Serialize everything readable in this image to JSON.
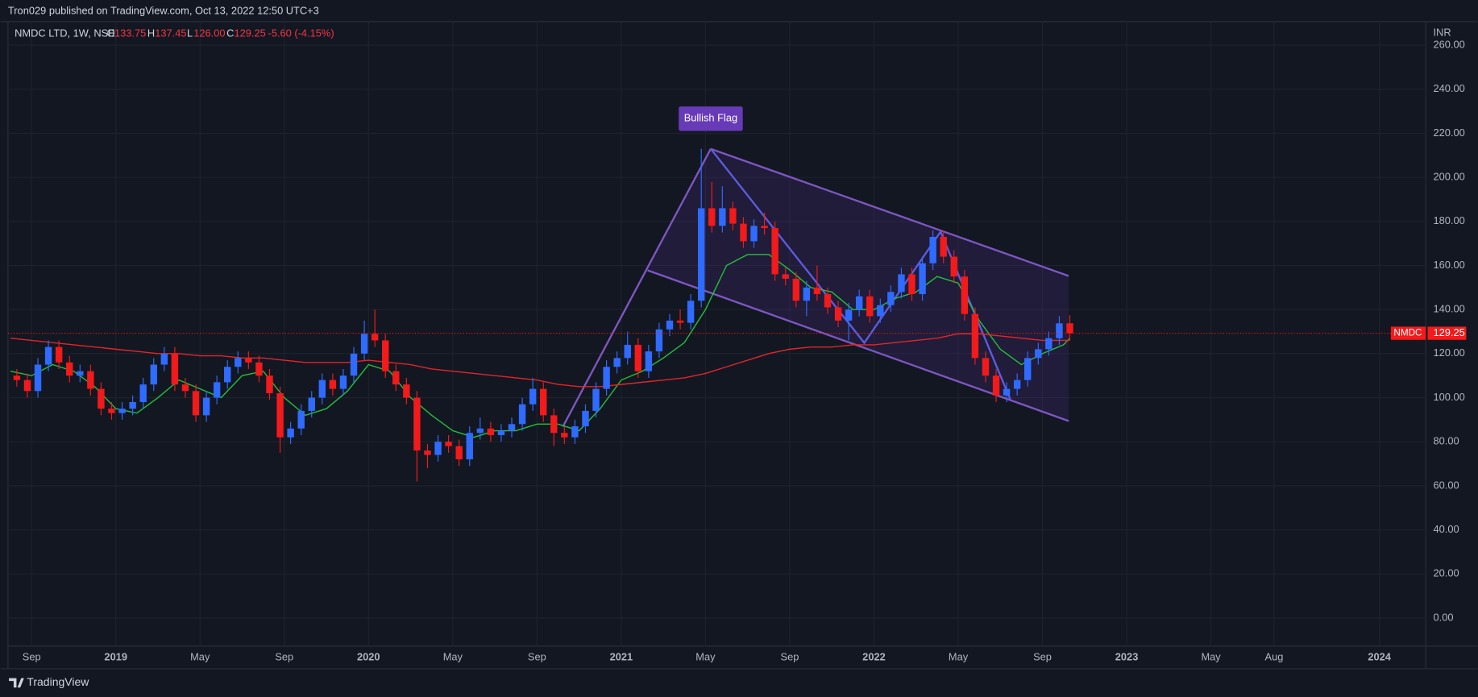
{
  "header": {
    "text": "Tron029 published on TradingView.com, Oct 13, 2022 12:50 UTC+3"
  },
  "footer": {
    "brand": "TradingView"
  },
  "chart_data": {
    "type": "candlestick",
    "legend": {
      "symbol": "NMDC LTD, 1W, NSE",
      "open_label": "O",
      "open": "133.75",
      "high_label": "H",
      "high": "137.45",
      "low_label": "L",
      "low": "126.00",
      "close_label": "C",
      "close": "129.25",
      "change": "-5.60 (-4.15%)"
    },
    "y_unit": "INR",
    "price_label": {
      "symbol": "NMDC",
      "value": "129.25"
    },
    "annotation": "Bullish Flag",
    "xlim": [
      -1.12,
      66.2
    ],
    "xticks": [
      {
        "value": 0,
        "label": "Sep"
      },
      {
        "value": 4,
        "label": "2019"
      },
      {
        "value": 8,
        "label": "May"
      },
      {
        "value": 12,
        "label": "Sep"
      },
      {
        "value": 16,
        "label": "2020"
      },
      {
        "value": 20,
        "label": "May"
      },
      {
        "value": 24,
        "label": "Sep"
      },
      {
        "value": 28,
        "label": "2021"
      },
      {
        "value": 32,
        "label": "May"
      },
      {
        "value": 36,
        "label": "Sep"
      },
      {
        "value": 40,
        "label": "2022"
      },
      {
        "value": 44,
        "label": "May"
      },
      {
        "value": 48,
        "label": "Sep"
      },
      {
        "value": 52,
        "label": "2023"
      },
      {
        "value": 56,
        "label": "May"
      },
      {
        "value": 59,
        "label": "Aug"
      },
      {
        "value": 64,
        "label": "2024"
      }
    ],
    "ylim": [
      -12.8,
      270.7
    ],
    "yticks": [
      {
        "value": 0,
        "label": "0.00"
      },
      {
        "value": 20,
        "label": "20.00"
      },
      {
        "value": 40,
        "label": "40.00"
      },
      {
        "value": 60,
        "label": "60.00"
      },
      {
        "value": 80,
        "label": "80.00"
      },
      {
        "value": 100,
        "label": "100.00"
      },
      {
        "value": 120,
        "label": "120.00"
      },
      {
        "value": 140,
        "label": "140.00"
      },
      {
        "value": 160,
        "label": "160.00"
      },
      {
        "value": 180,
        "label": "180.00"
      },
      {
        "value": 200,
        "label": "200.00"
      },
      {
        "value": 220,
        "label": "220.00"
      },
      {
        "value": 240,
        "label": "240.00"
      },
      {
        "value": 260,
        "label": "260.00"
      }
    ],
    "grid": true,
    "candles": {
      "up_color": "#2f6bff",
      "down_color": "#f21a1a",
      "x": [
        -0.7,
        -0.2,
        0.3,
        0.8,
        1.3,
        1.8,
        2.3,
        2.8,
        3.3,
        3.8,
        4.3,
        4.8,
        5.3,
        5.8,
        6.3,
        6.8,
        7.3,
        7.8,
        8.3,
        8.8,
        9.3,
        9.8,
        10.3,
        10.8,
        11.3,
        11.8,
        12.3,
        12.8,
        13.3,
        13.8,
        14.3,
        14.8,
        15.3,
        15.8,
        16.3,
        16.8,
        17.3,
        17.8,
        18.3,
        18.8,
        19.3,
        19.8,
        20.3,
        20.8,
        21.3,
        21.8,
        22.3,
        22.8,
        23.3,
        23.8,
        24.3,
        24.8,
        25.3,
        25.8,
        26.3,
        26.8,
        27.3,
        27.8,
        28.3,
        28.8,
        29.3,
        29.8,
        30.3,
        30.8,
        31.3,
        31.8,
        32.3,
        32.8,
        33.3,
        33.8,
        34.3,
        34.8,
        35.3,
        35.8,
        36.3,
        36.8,
        37.3,
        37.8,
        38.3,
        38.8,
        39.3,
        39.8,
        40.3,
        40.8,
        41.3,
        41.8,
        42.3,
        42.8,
        43.3,
        43.8,
        44.3,
        44.8,
        45.3,
        45.8,
        46.3,
        46.8,
        47.3,
        47.8,
        48.3,
        48.8,
        49.3
      ],
      "open": [
        110,
        108,
        103,
        115,
        123,
        116,
        110,
        112,
        104,
        95,
        93,
        95,
        98,
        106,
        115,
        120,
        106,
        103,
        92,
        100,
        107,
        114,
        118,
        116,
        110,
        102,
        82,
        86,
        94,
        100,
        108,
        104,
        110,
        120,
        129,
        126,
        112,
        106,
        100,
        76,
        74,
        80,
        78,
        72,
        84,
        86,
        83,
        85,
        88,
        97,
        104,
        92,
        84,
        82,
        87,
        94,
        104,
        114,
        118,
        124,
        112,
        121,
        131,
        135,
        134,
        144,
        186,
        178,
        186,
        179,
        171,
        178,
        177,
        156,
        154,
        144,
        150,
        147,
        141,
        135,
        140,
        146,
        137,
        142,
        148,
        156,
        147,
        161,
        173,
        164,
        155,
        138,
        118,
        110,
        101,
        104,
        108,
        118,
        122,
        127,
        133.75
      ],
      "high": [
        113,
        111,
        118,
        126,
        126,
        119,
        115,
        115,
        107,
        98,
        98,
        101,
        109,
        118,
        123,
        123,
        109,
        106,
        103,
        110,
        117,
        121,
        121,
        119,
        113,
        105,
        89,
        97,
        103,
        111,
        111,
        113,
        123,
        135,
        140,
        129,
        115,
        109,
        103,
        79,
        83,
        83,
        81,
        87,
        91,
        89,
        88,
        91,
        100,
        109,
        107,
        95,
        87,
        90,
        97,
        107,
        117,
        121,
        130,
        127,
        124,
        134,
        138,
        140,
        147,
        213,
        198,
        196,
        189,
        182,
        181,
        184,
        180,
        159,
        157,
        153,
        160,
        150,
        144,
        143,
        149,
        149,
        145,
        151,
        159,
        159,
        164,
        176,
        176,
        167,
        158,
        141,
        121,
        113,
        107,
        111,
        121,
        125,
        130,
        137,
        137.45
      ],
      "low": [
        105,
        100,
        100,
        112,
        113,
        107,
        107,
        101,
        92,
        90,
        90,
        92,
        95,
        103,
        112,
        103,
        100,
        89,
        89,
        97,
        104,
        111,
        113,
        107,
        99,
        75,
        79,
        83,
        91,
        97,
        101,
        101,
        107,
        117,
        123,
        109,
        103,
        97,
        62,
        68,
        71,
        75,
        69,
        69,
        81,
        80,
        80,
        82,
        85,
        94,
        89,
        78,
        79,
        79,
        84,
        91,
        101,
        111,
        115,
        109,
        109,
        118,
        128,
        131,
        131,
        141,
        175,
        175,
        176,
        168,
        168,
        174,
        153,
        151,
        141,
        137,
        144,
        138,
        132,
        126,
        137,
        134,
        134,
        139,
        145,
        144,
        144,
        158,
        161,
        152,
        135,
        115,
        107,
        98,
        98,
        101,
        105,
        115,
        119,
        124,
        126
      ],
      "close": [
        108,
        103,
        115,
        123,
        116,
        110,
        112,
        104,
        95,
        93,
        95,
        98,
        106,
        115,
        120,
        106,
        103,
        92,
        100,
        107,
        114,
        118,
        116,
        110,
        102,
        82,
        86,
        94,
        100,
        108,
        104,
        110,
        120,
        129,
        126,
        112,
        106,
        100,
        76,
        74,
        80,
        78,
        72,
        84,
        86,
        83,
        85,
        88,
        97,
        104,
        92,
        84,
        82,
        87,
        94,
        104,
        114,
        118,
        124,
        112,
        121,
        131,
        135,
        134,
        144,
        186,
        178,
        186,
        179,
        171,
        178,
        177,
        156,
        154,
        144,
        150,
        147,
        141,
        135,
        140,
        146,
        137,
        142,
        148,
        156,
        147,
        161,
        173,
        164,
        155,
        138,
        118,
        110,
        101,
        104,
        108,
        118,
        122,
        127,
        133.75,
        129.25
      ]
    },
    "moving_averages": [
      {
        "color": "#22c03c",
        "x": [
          -1,
          0,
          1,
          2,
          3,
          4,
          5,
          6,
          7,
          8,
          9,
          10,
          11,
          12,
          13,
          14,
          15,
          16,
          17,
          18,
          19,
          20,
          21,
          22,
          23,
          24,
          25,
          26,
          27,
          28,
          29,
          30,
          31,
          32,
          33,
          34,
          35,
          36,
          37,
          38,
          39,
          40,
          41,
          42,
          43,
          44,
          45,
          46,
          47,
          48,
          49,
          49.3
        ],
        "values": [
          112,
          110,
          115,
          112,
          105,
          95,
          93,
          100,
          108,
          104,
          100,
          110,
          112,
          100,
          92,
          95,
          103,
          115,
          112,
          100,
          92,
          85,
          82,
          85,
          85,
          88,
          88,
          85,
          95,
          108,
          112,
          118,
          125,
          140,
          160,
          165,
          165,
          158,
          150,
          148,
          140,
          140,
          145,
          148,
          155,
          152,
          135,
          122,
          115,
          120,
          124,
          127
        ]
      },
      {
        "color": "#e0262a",
        "x": [
          -1,
          0,
          1,
          2,
          3,
          4,
          5,
          6,
          7,
          8,
          9,
          10,
          11,
          12,
          13,
          14,
          15,
          16,
          17,
          18,
          19,
          20,
          21,
          22,
          23,
          24,
          25,
          26,
          27,
          28,
          29,
          30,
          31,
          32,
          33,
          34,
          35,
          36,
          37,
          38,
          39,
          40,
          41,
          42,
          43,
          44,
          45,
          46,
          47,
          48,
          49,
          49.3
        ],
        "values": [
          127,
          126,
          125,
          124,
          123,
          122,
          121,
          120,
          120,
          119,
          119,
          118,
          118,
          117,
          116,
          116,
          116,
          117,
          116,
          115,
          113,
          112,
          111,
          110,
          109,
          108,
          106,
          105,
          105,
          106,
          107,
          108,
          109,
          111,
          114,
          117,
          120,
          122,
          123,
          123,
          124,
          124,
          125,
          126,
          127,
          129,
          129,
          128,
          127,
          126,
          126,
          126
        ]
      }
    ]
  }
}
